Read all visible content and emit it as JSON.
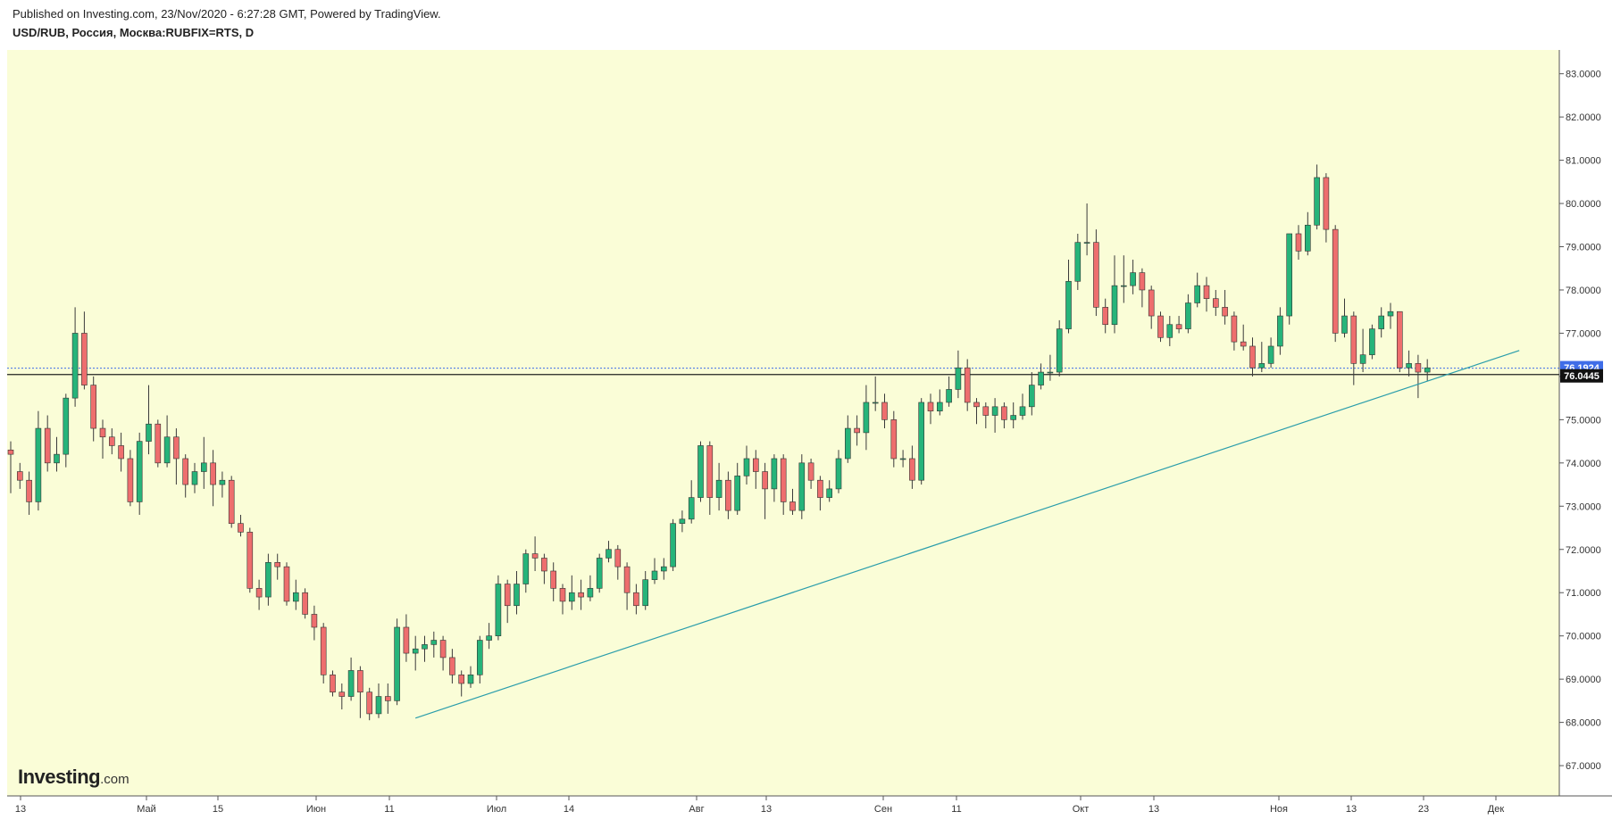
{
  "header": {
    "published": "Published on Investing.com, 23/Nov/2020 - 6:27:28 GMT, Powered by TradingView.",
    "symbol": "USD/RUB, Россия, Москва:RUBFIX=RTS, D"
  },
  "logo": {
    "main": "Investing",
    "suffix": ".com"
  },
  "colors": {
    "plot_bg": "#fafdd7",
    "up": "#26b47a",
    "down": "#ee6e6e",
    "wick": "#3a3a3a",
    "trendline": "#2a9dab",
    "bid_label": "#3f6de8",
    "price_label": "#111111"
  },
  "chart_data": {
    "type": "candlestick",
    "timeframe": "D",
    "title": "USD/RUB, Россия, Москва:RUBFIX=RTS, D",
    "y_axis_position": "right",
    "ylim": [
      66.3,
      83.55
    ],
    "y_ticks": [
      "67.0000",
      "68.0000",
      "69.0000",
      "70.0000",
      "71.0000",
      "72.0000",
      "73.0000",
      "74.0000",
      "75.0000",
      "76.0000",
      "77.0000",
      "78.0000",
      "79.0000",
      "80.0000",
      "81.0000",
      "82.0000",
      "83.0000"
    ],
    "x_ticks": [
      "13",
      "Май",
      "15",
      "Июн",
      "11",
      "Июл",
      "14",
      "Авг",
      "13",
      "Сен",
      "11",
      "Окт",
      "13",
      "Ноя",
      "13",
      "23",
      "Дек"
    ],
    "grid": false,
    "current_price": "76.0445",
    "bid_price": "76.1924",
    "trendline": {
      "start": [
        44,
        68.1
      ],
      "end": [
        164,
        76.6
      ]
    },
    "candles": [
      [
        74.3,
        74.2,
        74.5,
        73.3
      ],
      [
        73.8,
        73.6,
        74.0,
        73.4
      ],
      [
        73.6,
        73.1,
        73.8,
        72.8
      ],
      [
        73.1,
        74.8,
        75.2,
        72.9
      ],
      [
        74.8,
        74.0,
        75.1,
        73.8
      ],
      [
        74.0,
        74.2,
        74.6,
        73.8
      ],
      [
        74.2,
        75.5,
        75.6,
        73.9
      ],
      [
        75.5,
        77.0,
        77.6,
        75.3
      ],
      [
        77.0,
        75.8,
        77.5,
        75.7
      ],
      [
        75.8,
        74.8,
        76.0,
        74.5
      ],
      [
        74.8,
        74.6,
        75.0,
        74.1
      ],
      [
        74.6,
        74.4,
        74.8,
        74.2
      ],
      [
        74.4,
        74.1,
        74.7,
        73.8
      ],
      [
        74.1,
        73.1,
        74.3,
        73.0
      ],
      [
        73.1,
        74.5,
        74.7,
        72.8
      ],
      [
        74.5,
        74.9,
        75.8,
        74.2
      ],
      [
        74.9,
        74.0,
        75.0,
        73.9
      ],
      [
        74.0,
        74.6,
        75.1,
        73.9
      ],
      [
        74.6,
        74.1,
        74.8,
        73.5
      ],
      [
        74.1,
        73.5,
        74.2,
        73.2
      ],
      [
        73.5,
        73.8,
        74.0,
        73.3
      ],
      [
        73.8,
        74.0,
        74.6,
        73.4
      ],
      [
        74.0,
        73.5,
        74.3,
        73.0
      ],
      [
        73.5,
        73.6,
        73.8,
        73.2
      ],
      [
        73.6,
        72.6,
        73.7,
        72.5
      ],
      [
        72.6,
        72.4,
        72.8,
        72.3
      ],
      [
        72.4,
        71.1,
        72.5,
        71.0
      ],
      [
        71.1,
        70.9,
        71.3,
        70.6
      ],
      [
        70.9,
        71.7,
        71.9,
        70.7
      ],
      [
        71.7,
        71.6,
        71.9,
        71.3
      ],
      [
        71.6,
        70.8,
        71.7,
        70.7
      ],
      [
        70.8,
        71.0,
        71.3,
        70.6
      ],
      [
        71.0,
        70.5,
        71.1,
        70.4
      ],
      [
        70.5,
        70.2,
        70.7,
        69.9
      ],
      [
        70.2,
        69.1,
        70.3,
        68.9
      ],
      [
        69.1,
        68.7,
        69.2,
        68.6
      ],
      [
        68.7,
        68.6,
        68.9,
        68.3
      ],
      [
        68.6,
        69.2,
        69.5,
        68.5
      ],
      [
        69.2,
        68.7,
        69.3,
        68.1
      ],
      [
        68.7,
        68.2,
        68.8,
        68.05
      ],
      [
        68.2,
        68.6,
        68.9,
        68.1
      ],
      [
        68.6,
        68.5,
        68.9,
        68.2
      ],
      [
        68.5,
        70.2,
        70.4,
        68.4
      ],
      [
        70.2,
        69.6,
        70.5,
        69.4
      ],
      [
        69.6,
        69.7,
        70.0,
        69.2
      ],
      [
        69.7,
        69.8,
        70.0,
        69.4
      ],
      [
        69.8,
        69.9,
        70.1,
        69.5
      ],
      [
        69.9,
        69.5,
        70.0,
        69.2
      ],
      [
        69.5,
        69.1,
        69.7,
        68.9
      ],
      [
        69.1,
        68.9,
        69.2,
        68.6
      ],
      [
        68.9,
        69.1,
        69.3,
        68.8
      ],
      [
        69.1,
        69.9,
        70.0,
        68.9
      ],
      [
        69.9,
        70.0,
        70.3,
        69.7
      ],
      [
        70.0,
        71.2,
        71.4,
        69.9
      ],
      [
        71.2,
        70.7,
        71.3,
        70.3
      ],
      [
        70.7,
        71.2,
        71.5,
        70.5
      ],
      [
        71.2,
        71.9,
        72.0,
        71.0
      ],
      [
        71.9,
        71.8,
        72.3,
        71.5
      ],
      [
        71.8,
        71.5,
        71.9,
        71.2
      ],
      [
        71.5,
        71.1,
        71.7,
        70.8
      ],
      [
        71.1,
        70.8,
        71.2,
        70.5
      ],
      [
        70.8,
        71.0,
        71.4,
        70.6
      ],
      [
        71.0,
        70.9,
        71.3,
        70.6
      ],
      [
        70.9,
        71.1,
        71.4,
        70.8
      ],
      [
        71.1,
        71.8,
        71.9,
        71.0
      ],
      [
        71.8,
        72.0,
        72.2,
        71.7
      ],
      [
        72.0,
        71.6,
        72.1,
        71.3
      ],
      [
        71.6,
        71.0,
        71.7,
        70.6
      ],
      [
        71.0,
        70.7,
        71.2,
        70.5
      ],
      [
        70.7,
        71.3,
        71.5,
        70.6
      ],
      [
        71.3,
        71.5,
        71.8,
        71.2
      ],
      [
        71.5,
        71.6,
        71.8,
        71.3
      ],
      [
        71.6,
        72.6,
        72.7,
        71.5
      ],
      [
        72.6,
        72.7,
        72.9,
        72.4
      ],
      [
        72.7,
        73.2,
        73.6,
        72.6
      ],
      [
        73.2,
        74.4,
        74.5,
        73.1
      ],
      [
        74.4,
        73.2,
        74.5,
        72.8
      ],
      [
        73.2,
        73.6,
        74.0,
        72.9
      ],
      [
        73.6,
        72.9,
        73.8,
        72.7
      ],
      [
        72.9,
        73.7,
        74.0,
        72.8
      ],
      [
        73.7,
        74.1,
        74.4,
        73.5
      ],
      [
        74.1,
        73.8,
        74.3,
        73.4
      ],
      [
        73.8,
        73.4,
        74.0,
        72.7
      ],
      [
        73.4,
        74.1,
        74.2,
        73.1
      ],
      [
        74.1,
        73.1,
        74.2,
        72.8
      ],
      [
        73.1,
        72.9,
        73.4,
        72.8
      ],
      [
        72.9,
        74.0,
        74.2,
        72.7
      ],
      [
        74.0,
        73.6,
        74.1,
        73.4
      ],
      [
        73.6,
        73.2,
        73.7,
        72.9
      ],
      [
        73.2,
        73.4,
        73.6,
        73.1
      ],
      [
        73.4,
        74.1,
        74.3,
        73.3
      ],
      [
        74.1,
        74.8,
        75.1,
        74.0
      ],
      [
        74.8,
        74.7,
        75.1,
        74.4
      ],
      [
        74.7,
        75.4,
        75.8,
        74.3
      ],
      [
        75.4,
        75.4,
        76.0,
        75.2
      ],
      [
        75.4,
        75.0,
        75.6,
        74.8
      ],
      [
        75.0,
        74.1,
        75.2,
        73.9
      ],
      [
        74.1,
        74.1,
        74.3,
        73.9
      ],
      [
        74.1,
        73.6,
        74.4,
        73.4
      ],
      [
        73.6,
        75.4,
        75.5,
        73.5
      ],
      [
        75.4,
        75.2,
        75.6,
        74.9
      ],
      [
        75.2,
        75.4,
        75.7,
        75.1
      ],
      [
        75.4,
        75.7,
        76.0,
        75.3
      ],
      [
        75.7,
        76.2,
        76.6,
        75.5
      ],
      [
        76.2,
        75.4,
        76.4,
        75.2
      ],
      [
        75.4,
        75.3,
        75.5,
        74.9
      ],
      [
        75.3,
        75.1,
        75.4,
        74.8
      ],
      [
        75.1,
        75.3,
        75.5,
        74.7
      ],
      [
        75.3,
        75.0,
        75.4,
        74.8
      ],
      [
        75.0,
        75.1,
        75.4,
        74.8
      ],
      [
        75.1,
        75.3,
        75.6,
        75.0
      ],
      [
        75.3,
        75.8,
        76.1,
        75.1
      ],
      [
        75.8,
        76.1,
        76.3,
        75.7
      ],
      [
        76.1,
        76.1,
        76.5,
        75.9
      ],
      [
        76.1,
        77.1,
        77.3,
        76.0
      ],
      [
        77.1,
        78.2,
        78.7,
        77.0
      ],
      [
        78.2,
        79.1,
        79.3,
        78.0
      ],
      [
        79.1,
        79.1,
        80.0,
        78.8
      ],
      [
        79.1,
        77.6,
        79.4,
        77.4
      ],
      [
        77.6,
        77.2,
        77.8,
        77.0
      ],
      [
        77.2,
        78.1,
        78.8,
        77.0
      ],
      [
        78.1,
        78.1,
        78.8,
        77.7
      ],
      [
        78.1,
        78.4,
        78.7,
        77.9
      ],
      [
        78.4,
        78.0,
        78.5,
        77.6
      ],
      [
        78.0,
        77.4,
        78.1,
        77.1
      ],
      [
        77.4,
        76.9,
        77.5,
        76.8
      ],
      [
        76.9,
        77.2,
        77.4,
        76.7
      ],
      [
        77.2,
        77.1,
        77.4,
        77.0
      ],
      [
        77.1,
        77.7,
        77.9,
        77.0
      ],
      [
        77.7,
        78.1,
        78.4,
        77.6
      ],
      [
        78.1,
        77.8,
        78.3,
        77.5
      ],
      [
        77.8,
        77.6,
        78.0,
        77.4
      ],
      [
        77.6,
        77.4,
        78.0,
        77.2
      ],
      [
        77.4,
        76.8,
        77.5,
        76.6
      ],
      [
        76.8,
        76.7,
        77.2,
        76.6
      ],
      [
        76.7,
        76.2,
        76.9,
        76.0
      ],
      [
        76.2,
        76.3,
        76.8,
        76.1
      ],
      [
        76.3,
        76.7,
        76.9,
        76.2
      ],
      [
        76.7,
        77.4,
        77.6,
        76.5
      ],
      [
        77.4,
        79.3,
        79.3,
        77.2
      ],
      [
        79.3,
        78.9,
        79.5,
        78.7
      ],
      [
        78.9,
        79.5,
        79.8,
        78.8
      ],
      [
        79.5,
        80.6,
        80.9,
        79.4
      ],
      [
        80.6,
        79.4,
        80.7,
        79.1
      ],
      [
        79.4,
        77.0,
        79.5,
        76.8
      ],
      [
        77.0,
        77.4,
        77.8,
        76.9
      ],
      [
        77.4,
        76.3,
        77.5,
        75.8
      ],
      [
        76.3,
        76.5,
        77.1,
        76.1
      ],
      [
        76.5,
        77.1,
        77.2,
        76.4
      ],
      [
        77.1,
        77.4,
        77.6,
        76.9
      ],
      [
        77.4,
        77.5,
        77.7,
        77.1
      ],
      [
        77.5,
        76.2,
        77.5,
        76.1
      ],
      [
        76.2,
        76.3,
        76.6,
        76.0
      ],
      [
        76.3,
        76.1,
        76.5,
        75.5
      ],
      [
        76.1,
        76.2,
        76.4,
        75.9
      ]
    ]
  }
}
